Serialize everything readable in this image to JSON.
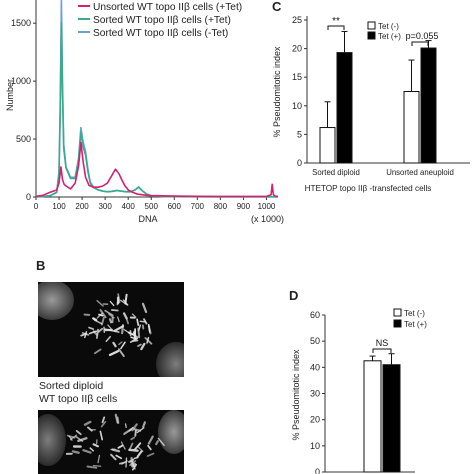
{
  "panels": {
    "B_letter": "B",
    "C_letter": "C",
    "D_letter": "D"
  },
  "chart_data": [
    {
      "id": "A",
      "type": "line",
      "xlabel": "DNA",
      "ylabel": "Number",
      "x_unit_note": "(x 1000)",
      "xlim": [
        0,
        1050
      ],
      "ylim": [
        0,
        1700
      ],
      "xticks": [
        0,
        100,
        200,
        300,
        400,
        500,
        600,
        700,
        800,
        900,
        1000
      ],
      "yticks": [
        0,
        500,
        1000,
        1500
      ],
      "series": [
        {
          "name": "Unsorted WT topo IIβ cells (+Tet)",
          "color": "#d61f6e",
          "x": [
            0,
            30,
            60,
            90,
            100,
            108,
            115,
            122,
            130,
            150,
            170,
            185,
            195,
            205,
            215,
            230,
            250,
            270,
            290,
            310,
            330,
            345,
            360,
            372,
            385,
            400,
            420,
            440,
            460,
            480,
            500,
            550,
            600,
            700,
            800,
            900,
            1000,
            1020,
            1025,
            1030,
            1040,
            1050
          ],
          "y": [
            5,
            15,
            40,
            60,
            120,
            260,
            150,
            110,
            95,
            70,
            120,
            270,
            470,
            300,
            170,
            100,
            85,
            85,
            95,
            120,
            190,
            240,
            200,
            150,
            100,
            60,
            40,
            25,
            20,
            15,
            12,
            10,
            8,
            6,
            5,
            5,
            5,
            20,
            110,
            20,
            5,
            5
          ]
        },
        {
          "name": "Sorted WT topo IIβ cells (+Tet)",
          "color": "#3aaa8f",
          "x": [
            0,
            60,
            90,
            100,
            105,
            110,
            115,
            120,
            130,
            150,
            170,
            185,
            195,
            205,
            215,
            225,
            235,
            250,
            270,
            290,
            310,
            330,
            350,
            370,
            390,
            410,
            430,
            445,
            460,
            480,
            500,
            550,
            600,
            800,
            1000,
            1050
          ],
          "y": [
            0,
            10,
            40,
            200,
            700,
            1500,
            900,
            420,
            250,
            160,
            160,
            310,
            560,
            430,
            360,
            220,
            120,
            80,
            60,
            50,
            45,
            48,
            55,
            50,
            45,
            45,
            60,
            85,
            55,
            25,
            10,
            5,
            3,
            2,
            2,
            2
          ]
        },
        {
          "name": "Sorted WT topo IIβ cells (-Tet)",
          "color": "#6a9fd4",
          "x": [
            0,
            60,
            90,
            100,
            105,
            110,
            115,
            120,
            130,
            150,
            170,
            185,
            195,
            205,
            215,
            225,
            235,
            250,
            270,
            290,
            310,
            330,
            350,
            370,
            390,
            410,
            430,
            445,
            460,
            480,
            500,
            550,
            600,
            800,
            1000,
            1050
          ],
          "y": [
            0,
            10,
            40,
            220,
            800,
            1700,
            1000,
            460,
            260,
            170,
            170,
            340,
            600,
            470,
            390,
            240,
            130,
            85,
            62,
            52,
            46,
            50,
            57,
            52,
            46,
            46,
            62,
            88,
            57,
            26,
            10,
            5,
            3,
            2,
            2,
            2
          ]
        }
      ]
    },
    {
      "id": "C",
      "type": "bar",
      "ylabel": "% Pseudomitotic index",
      "xlabel": "HTETOP  topo IIβ -transfected cells",
      "ylim": [
        0,
        25
      ],
      "yticks": [
        0,
        5,
        10,
        15,
        20,
        25
      ],
      "categories": [
        "Sorted diploid",
        "Unsorted aneuploid"
      ],
      "series": [
        {
          "name": "Tet (-)",
          "color": "#ffffff",
          "values": [
            6.2,
            12.5
          ],
          "errors": [
            4.5,
            5.5
          ]
        },
        {
          "name": "Tet (+)",
          "color": "#000000",
          "values": [
            19.3,
            20.1
          ],
          "errors": [
            3.7,
            1.3
          ]
        }
      ],
      "annotations": [
        "**",
        "p=0.055"
      ]
    },
    {
      "id": "D",
      "type": "bar",
      "ylabel": "% Pseudomitotic index",
      "ylim": [
        0,
        60
      ],
      "yticks": [
        0,
        10,
        20,
        30,
        40,
        50,
        60
      ],
      "categories": [
        ""
      ],
      "series": [
        {
          "name": "Tet (-)",
          "color": "#ffffff",
          "values": [
            42.5
          ],
          "errors": [
            1.8
          ]
        },
        {
          "name": "Tet (+)",
          "color": "#000000",
          "values": [
            41.0
          ],
          "errors": [
            4.2
          ]
        }
      ],
      "annotations": [
        "NS"
      ]
    }
  ],
  "micrograph_caption": {
    "line1": "Sorted diploid",
    "line2": "WT topo IIβ cells"
  }
}
